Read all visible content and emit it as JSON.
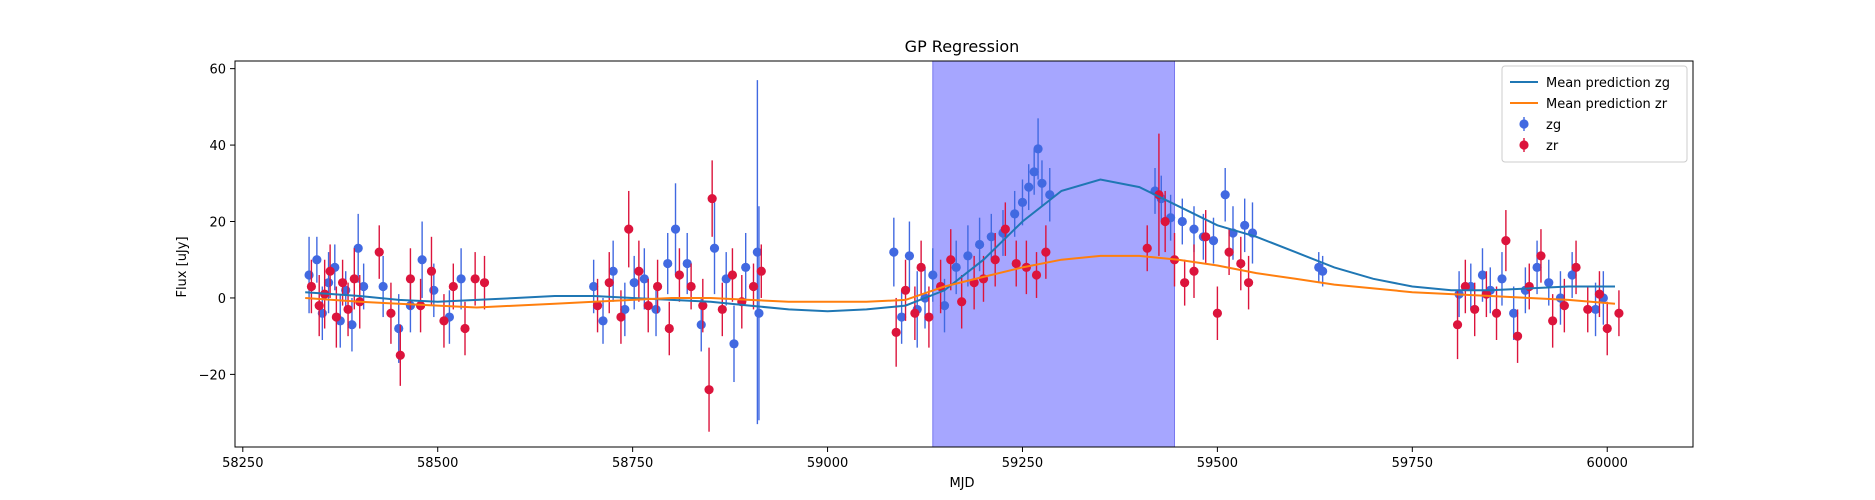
{
  "chart_data": {
    "type": "scatter",
    "title": "GP Regression",
    "xlabel": "MJD",
    "ylabel": "Flux [uJy]",
    "xlim": [
      58240,
      60110
    ],
    "ylim": [
      -39,
      62
    ],
    "xticks": [
      58250,
      58500,
      58750,
      59000,
      59250,
      59500,
      59750,
      60000
    ],
    "yticks": [
      -20,
      0,
      20,
      40,
      60
    ],
    "grid": false,
    "legend_position": "top-right",
    "shaded_region": {
      "x_start": 59135,
      "x_end": 59445,
      "color": "#a6a6ff"
    },
    "colors": {
      "zg": "#4169e1",
      "zr": "#dc143c",
      "mean_zg": "#1f77b4",
      "mean_zr": "#ff7f0e"
    },
    "series": [
      {
        "name": "Mean prediction zg",
        "kind": "line",
        "color": "#1f77b4",
        "x": [
          58330,
          58400,
          58450,
          58500,
          58550,
          58600,
          58650,
          58700,
          58750,
          58800,
          58850,
          58900,
          58950,
          59000,
          59050,
          59100,
          59150,
          59200,
          59250,
          59300,
          59350,
          59400,
          59450,
          59500,
          59550,
          59600,
          59650,
          59700,
          59750,
          59800,
          59850,
          59900,
          59950,
          60010
        ],
        "y": [
          1.5,
          0.5,
          -0.5,
          -1.0,
          -0.5,
          0.0,
          0.5,
          0.5,
          0.0,
          -0.5,
          -1.0,
          -2.0,
          -3.0,
          -3.5,
          -3.0,
          -2.0,
          2.0,
          10.0,
          20.0,
          28.0,
          31.0,
          29.0,
          24.0,
          19.0,
          16.0,
          12.0,
          8.0,
          5.0,
          3.0,
          2.0,
          2.0,
          2.5,
          3.0,
          3.0
        ]
      },
      {
        "name": "Mean prediction zr",
        "kind": "line",
        "color": "#ff7f0e",
        "x": [
          58330,
          58400,
          58450,
          58500,
          58550,
          58600,
          58650,
          58700,
          58750,
          58800,
          58850,
          58900,
          58950,
          59000,
          59050,
          59100,
          59150,
          59200,
          59250,
          59300,
          59350,
          59400,
          59450,
          59500,
          59550,
          59600,
          59650,
          59700,
          59750,
          59800,
          59850,
          59900,
          59950,
          60010
        ],
        "y": [
          0.0,
          -1.0,
          -1.5,
          -2.0,
          -2.5,
          -2.0,
          -1.5,
          -1.0,
          -0.5,
          0.0,
          0.0,
          -0.5,
          -1.0,
          -1.0,
          -1.0,
          -0.5,
          3.0,
          5.5,
          8.0,
          10.0,
          11.0,
          11.0,
          10.0,
          8.5,
          6.5,
          5.0,
          3.5,
          2.5,
          1.5,
          1.0,
          0.5,
          0.0,
          -0.5,
          -1.5
        ]
      },
      {
        "name": "zg",
        "kind": "errorbar",
        "color": "#4169e1",
        "points": [
          [
            58335,
            6,
            10
          ],
          [
            58345,
            10,
            6
          ],
          [
            58352,
            -4,
            7
          ],
          [
            58360,
            4,
            8
          ],
          [
            58368,
            8,
            6
          ],
          [
            58375,
            -6,
            7
          ],
          [
            58382,
            2,
            5
          ],
          [
            58390,
            -7,
            7
          ],
          [
            58398,
            13,
            9
          ],
          [
            58405,
            3,
            6
          ],
          [
            58430,
            3,
            8
          ],
          [
            58450,
            -8,
            9
          ],
          [
            58465,
            -2,
            7
          ],
          [
            58480,
            10,
            10
          ],
          [
            58495,
            2,
            7
          ],
          [
            58515,
            -5,
            7
          ],
          [
            58530,
            5,
            8
          ],
          [
            58700,
            3,
            7
          ],
          [
            58712,
            -6,
            6
          ],
          [
            58725,
            7,
            8
          ],
          [
            58740,
            -3,
            7
          ],
          [
            58752,
            4,
            7
          ],
          [
            58765,
            5,
            8
          ],
          [
            58780,
            -3,
            7
          ],
          [
            58795,
            9,
            8
          ],
          [
            58805,
            18,
            12
          ],
          [
            58820,
            9,
            8
          ],
          [
            58838,
            -7,
            7
          ],
          [
            58855,
            13,
            12
          ],
          [
            58870,
            5,
            7
          ],
          [
            58880,
            -12,
            10
          ],
          [
            58895,
            8,
            9
          ],
          [
            58910,
            12,
            45
          ],
          [
            58912,
            -4,
            28
          ],
          [
            59085,
            12,
            9
          ],
          [
            59095,
            -5,
            7
          ],
          [
            59105,
            11,
            9
          ],
          [
            59115,
            -3,
            10
          ],
          [
            59125,
            0,
            8
          ],
          [
            59135,
            6,
            7
          ],
          [
            59150,
            -2,
            7
          ],
          [
            59165,
            8,
            7
          ],
          [
            59180,
            11,
            8
          ],
          [
            59195,
            14,
            7
          ],
          [
            59210,
            16,
            6
          ],
          [
            59225,
            17,
            6
          ],
          [
            59240,
            22,
            6
          ],
          [
            59250,
            25,
            6
          ],
          [
            59258,
            29,
            6
          ],
          [
            59265,
            33,
            6
          ],
          [
            59270,
            39,
            8
          ],
          [
            59275,
            30,
            6
          ],
          [
            59285,
            27,
            7
          ],
          [
            59420,
            28,
            6
          ],
          [
            59428,
            26,
            6
          ],
          [
            59440,
            21,
            6
          ],
          [
            59455,
            20,
            6
          ],
          [
            59470,
            18,
            6
          ],
          [
            59482,
            16,
            6
          ],
          [
            59495,
            15,
            6
          ],
          [
            59510,
            27,
            7
          ],
          [
            59520,
            17,
            7
          ],
          [
            59535,
            19,
            7
          ],
          [
            59545,
            17,
            8
          ],
          [
            59630,
            8,
            4
          ],
          [
            59635,
            7,
            4
          ],
          [
            59810,
            1,
            6
          ],
          [
            59825,
            3,
            6
          ],
          [
            59840,
            6,
            7
          ],
          [
            59850,
            2,
            6
          ],
          [
            59865,
            5,
            7
          ],
          [
            59880,
            -4,
            7
          ],
          [
            59895,
            2,
            6
          ],
          [
            59910,
            8,
            7
          ],
          [
            59925,
            4,
            6
          ],
          [
            59940,
            0,
            7
          ],
          [
            59955,
            6,
            6
          ],
          [
            59985,
            -3,
            7
          ],
          [
            59995,
            0,
            7
          ]
        ]
      },
      {
        "name": "zr",
        "kind": "errorbar",
        "color": "#dc143c",
        "points": [
          [
            58338,
            3,
            7
          ],
          [
            58348,
            -2,
            8
          ],
          [
            58355,
            1,
            9
          ],
          [
            58362,
            7,
            7
          ],
          [
            58370,
            -5,
            8
          ],
          [
            58378,
            4,
            6
          ],
          [
            58385,
            -3,
            7
          ],
          [
            58393,
            5,
            8
          ],
          [
            58400,
            -1,
            7
          ],
          [
            58425,
            12,
            7
          ],
          [
            58440,
            -4,
            8
          ],
          [
            58452,
            -15,
            8
          ],
          [
            58465,
            5,
            8
          ],
          [
            58478,
            -2,
            7
          ],
          [
            58492,
            7,
            9
          ],
          [
            58508,
            -6,
            7
          ],
          [
            58520,
            3,
            6
          ],
          [
            58535,
            -8,
            7
          ],
          [
            58548,
            5,
            7
          ],
          [
            58560,
            4,
            7
          ],
          [
            58705,
            -2,
            7
          ],
          [
            58720,
            4,
            8
          ],
          [
            58735,
            -5,
            7
          ],
          [
            58745,
            18,
            10
          ],
          [
            58758,
            7,
            8
          ],
          [
            58770,
            -2,
            7
          ],
          [
            58782,
            3,
            7
          ],
          [
            58797,
            -8,
            7
          ],
          [
            58810,
            6,
            7
          ],
          [
            58825,
            3,
            6
          ],
          [
            58840,
            -2,
            7
          ],
          [
            58848,
            -24,
            11
          ],
          [
            58852,
            26,
            10
          ],
          [
            58865,
            -3,
            7
          ],
          [
            58878,
            6,
            7
          ],
          [
            58890,
            -1,
            7
          ],
          [
            58905,
            3,
            6
          ],
          [
            58915,
            7,
            7
          ],
          [
            59088,
            -9,
            9
          ],
          [
            59100,
            2,
            8
          ],
          [
            59112,
            -4,
            7
          ],
          [
            59120,
            8,
            7
          ],
          [
            59130,
            -5,
            8
          ],
          [
            59145,
            3,
            7
          ],
          [
            59158,
            10,
            8
          ],
          [
            59172,
            -1,
            7
          ],
          [
            59188,
            4,
            7
          ],
          [
            59200,
            5,
            6
          ],
          [
            59215,
            10,
            7
          ],
          [
            59228,
            18,
            7
          ],
          [
            59242,
            9,
            6
          ],
          [
            59255,
            8,
            7
          ],
          [
            59268,
            6,
            6
          ],
          [
            59280,
            12,
            7
          ],
          [
            59410,
            13,
            6
          ],
          [
            59425,
            27,
            16
          ],
          [
            59433,
            20,
            8
          ],
          [
            59445,
            10,
            7
          ],
          [
            59458,
            4,
            6
          ],
          [
            59470,
            7,
            7
          ],
          [
            59485,
            16,
            7
          ],
          [
            59500,
            -4,
            7
          ],
          [
            59515,
            12,
            6
          ],
          [
            59530,
            9,
            7
          ],
          [
            59540,
            4,
            7
          ],
          [
            59808,
            -7,
            9
          ],
          [
            59818,
            3,
            7
          ],
          [
            59830,
            -3,
            7
          ],
          [
            59845,
            1,
            6
          ],
          [
            59858,
            -4,
            7
          ],
          [
            59870,
            15,
            8
          ],
          [
            59885,
            -10,
            7
          ],
          [
            59900,
            3,
            6
          ],
          [
            59915,
            11,
            7
          ],
          [
            59930,
            -6,
            7
          ],
          [
            59945,
            -2,
            7
          ],
          [
            59960,
            8,
            7
          ],
          [
            59975,
            -3,
            6
          ],
          [
            59990,
            1,
            6
          ],
          [
            60000,
            -8,
            7
          ],
          [
            60015,
            -4,
            6
          ]
        ]
      }
    ]
  }
}
